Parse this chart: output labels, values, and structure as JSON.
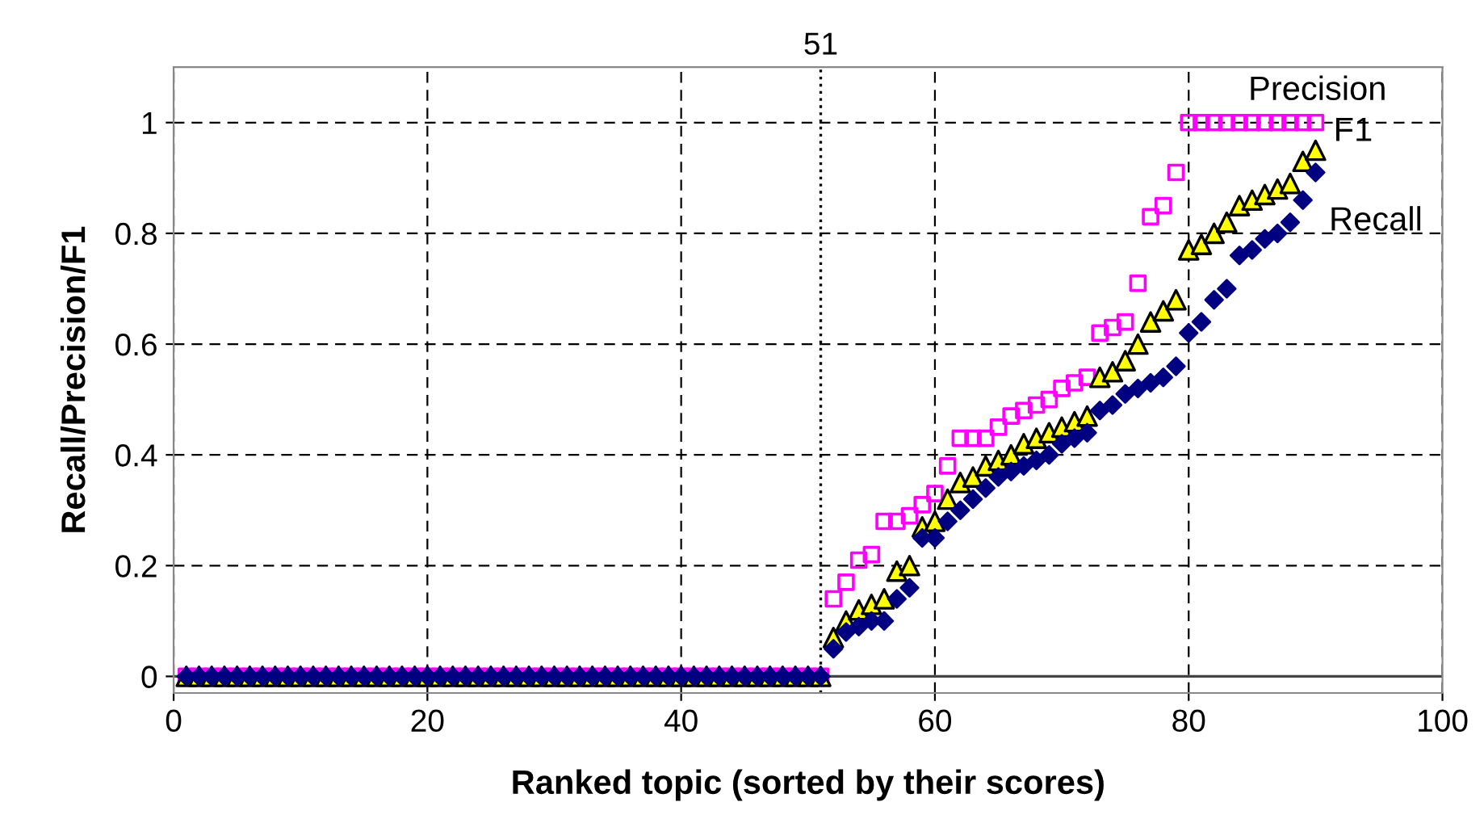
{
  "chart_data": {
    "type": "scatter",
    "xlabel": "Ranked topic (sorted by their scores)",
    "ylabel": "Recall/Precision/F1",
    "x": [
      1,
      2,
      3,
      4,
      5,
      6,
      7,
      8,
      9,
      10,
      11,
      12,
      13,
      14,
      15,
      16,
      17,
      18,
      19,
      20,
      21,
      22,
      23,
      24,
      25,
      26,
      27,
      28,
      29,
      30,
      31,
      32,
      33,
      34,
      35,
      36,
      37,
      38,
      39,
      40,
      41,
      42,
      43,
      44,
      45,
      46,
      47,
      48,
      49,
      50,
      51,
      52,
      53,
      54,
      55,
      56,
      57,
      58,
      59,
      60,
      61,
      62,
      63,
      64,
      65,
      66,
      67,
      68,
      69,
      70,
      71,
      72,
      73,
      74,
      75,
      76,
      77,
      78,
      79,
      80,
      81,
      82,
      83,
      84,
      85,
      86,
      87,
      88,
      89,
      90
    ],
    "series": [
      {
        "name": "Precision",
        "color": "#ff00ff",
        "marker": "square",
        "values": [
          0,
          0,
          0,
          0,
          0,
          0,
          0,
          0,
          0,
          0,
          0,
          0,
          0,
          0,
          0,
          0,
          0,
          0,
          0,
          0,
          0,
          0,
          0,
          0,
          0,
          0,
          0,
          0,
          0,
          0,
          0,
          0,
          0,
          0,
          0,
          0,
          0,
          0,
          0,
          0,
          0,
          0,
          0,
          0,
          0,
          0,
          0,
          0,
          0,
          0,
          0,
          0.14,
          0.17,
          0.21,
          0.22,
          0.28,
          0.28,
          0.29,
          0.31,
          0.33,
          0.38,
          0.43,
          0.43,
          0.43,
          0.45,
          0.47,
          0.48,
          0.49,
          0.5,
          0.52,
          0.53,
          0.54,
          0.62,
          0.63,
          0.64,
          0.71,
          0.83,
          0.85,
          0.91,
          1,
          1,
          1,
          1,
          1,
          1,
          1,
          1,
          1,
          1,
          1
        ]
      },
      {
        "name": "F1",
        "color": "#ffff00",
        "marker": "triangle",
        "values": [
          0,
          0,
          0,
          0,
          0,
          0,
          0,
          0,
          0,
          0,
          0,
          0,
          0,
          0,
          0,
          0,
          0,
          0,
          0,
          0,
          0,
          0,
          0,
          0,
          0,
          0,
          0,
          0,
          0,
          0,
          0,
          0,
          0,
          0,
          0,
          0,
          0,
          0,
          0,
          0,
          0,
          0,
          0,
          0,
          0,
          0,
          0,
          0,
          0,
          0,
          0,
          0.07,
          0.1,
          0.12,
          0.13,
          0.14,
          0.19,
          0.2,
          0.27,
          0.28,
          0.32,
          0.35,
          0.36,
          0.38,
          0.39,
          0.4,
          0.42,
          0.43,
          0.44,
          0.45,
          0.46,
          0.47,
          0.54,
          0.55,
          0.57,
          0.6,
          0.64,
          0.66,
          0.68,
          0.77,
          0.78,
          0.8,
          0.82,
          0.85,
          0.86,
          0.87,
          0.88,
          0.89,
          0.93,
          0.95
        ]
      },
      {
        "name": "Recall",
        "color": "#000080",
        "marker": "diamond",
        "values": [
          0,
          0,
          0,
          0,
          0,
          0,
          0,
          0,
          0,
          0,
          0,
          0,
          0,
          0,
          0,
          0,
          0,
          0,
          0,
          0,
          0,
          0,
          0,
          0,
          0,
          0,
          0,
          0,
          0,
          0,
          0,
          0,
          0,
          0,
          0,
          0,
          0,
          0,
          0,
          0,
          0,
          0,
          0,
          0,
          0,
          0,
          0,
          0,
          0,
          0,
          0,
          0.05,
          0.08,
          0.09,
          0.1,
          0.1,
          0.14,
          0.16,
          0.25,
          0.25,
          0.28,
          0.3,
          0.32,
          0.34,
          0.36,
          0.37,
          0.38,
          0.39,
          0.4,
          0.42,
          0.43,
          0.44,
          0.48,
          0.49,
          0.51,
          0.52,
          0.53,
          0.54,
          0.56,
          0.62,
          0.64,
          0.68,
          0.7,
          0.76,
          0.77,
          0.79,
          0.8,
          0.82,
          0.86,
          0.91
        ]
      }
    ],
    "xlim": [
      0,
      100
    ],
    "xticks": [
      0,
      20,
      40,
      60,
      80,
      100
    ],
    "ylim": [
      -0.03,
      1.1
    ],
    "yticks": [
      0,
      0.2,
      0.4,
      0.6,
      0.8,
      1
    ],
    "ref_lines": [
      {
        "axis": "x",
        "value": 51,
        "label": "51",
        "line_style": "dotted",
        "color": "#000000"
      }
    ],
    "grid": true
  }
}
